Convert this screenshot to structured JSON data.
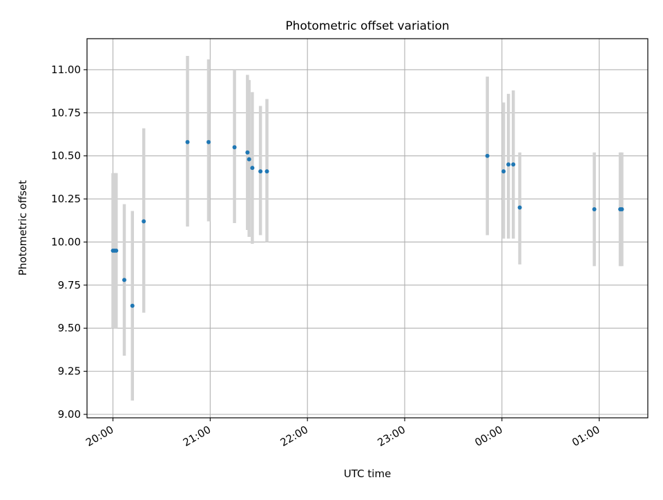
{
  "chart_data": {
    "type": "scatter",
    "title": "Photometric offset variation",
    "xlabel": "UTC time",
    "ylabel": "Photometric offset",
    "x_ticks": [
      "20:00",
      "21:00",
      "22:00",
      "23:00",
      "00:00",
      "01:00"
    ],
    "y_ticks": [
      "9.00",
      "9.25",
      "9.50",
      "9.75",
      "10.00",
      "10.25",
      "10.50",
      "10.75",
      "11.00"
    ],
    "xlim": [
      "19:44",
      "01:30"
    ],
    "ylim": [
      8.98,
      11.18
    ],
    "grid": true,
    "errorbar_color": "#d3d3d3",
    "marker_color": "#1f77b4",
    "series": [
      {
        "points": [
          {
            "x": "20:00",
            "y": 9.95,
            "ylow": 9.5,
            "yhigh": 10.4
          },
          {
            "x": "20:01",
            "y": 9.95,
            "ylow": 9.5,
            "yhigh": 10.4
          },
          {
            "x": "20:02",
            "y": 9.95,
            "ylow": 9.5,
            "yhigh": 10.4
          },
          {
            "x": "20:07",
            "y": 9.78,
            "ylow": 9.34,
            "yhigh": 10.22
          },
          {
            "x": "20:12",
            "y": 9.63,
            "ylow": 9.08,
            "yhigh": 10.18
          },
          {
            "x": "20:19",
            "y": 10.12,
            "ylow": 9.59,
            "yhigh": 10.66
          },
          {
            "x": "20:46",
            "y": 10.58,
            "ylow": 10.09,
            "yhigh": 11.08
          },
          {
            "x": "20:59",
            "y": 10.58,
            "ylow": 10.12,
            "yhigh": 11.06
          },
          {
            "x": "21:15",
            "y": 10.55,
            "ylow": 10.11,
            "yhigh": 11.0
          },
          {
            "x": "21:23",
            "y": 10.52,
            "ylow": 10.07,
            "yhigh": 10.97
          },
          {
            "x": "21:24",
            "y": 10.48,
            "ylow": 10.03,
            "yhigh": 10.94
          },
          {
            "x": "21:26",
            "y": 10.43,
            "ylow": 9.99,
            "yhigh": 10.87
          },
          {
            "x": "21:31",
            "y": 10.41,
            "ylow": 10.04,
            "yhigh": 10.79
          },
          {
            "x": "21:35",
            "y": 10.41,
            "ylow": 10.0,
            "yhigh": 10.83
          },
          {
            "x": "23:51",
            "y": 10.5,
            "ylow": 10.04,
            "yhigh": 10.96
          },
          {
            "x": "00:01",
            "y": 10.41,
            "ylow": 10.02,
            "yhigh": 10.81
          },
          {
            "x": "00:04",
            "y": 10.45,
            "ylow": 10.02,
            "yhigh": 10.86
          },
          {
            "x": "00:07",
            "y": 10.45,
            "ylow": 10.02,
            "yhigh": 10.88
          },
          {
            "x": "00:11",
            "y": 10.2,
            "ylow": 9.87,
            "yhigh": 10.52
          },
          {
            "x": "00:57",
            "y": 10.19,
            "ylow": 9.86,
            "yhigh": 10.52
          },
          {
            "x": "01:13",
            "y": 10.19,
            "ylow": 9.86,
            "yhigh": 10.52
          },
          {
            "x": "01:14",
            "y": 10.19,
            "ylow": 9.86,
            "yhigh": 10.52
          }
        ]
      }
    ]
  }
}
